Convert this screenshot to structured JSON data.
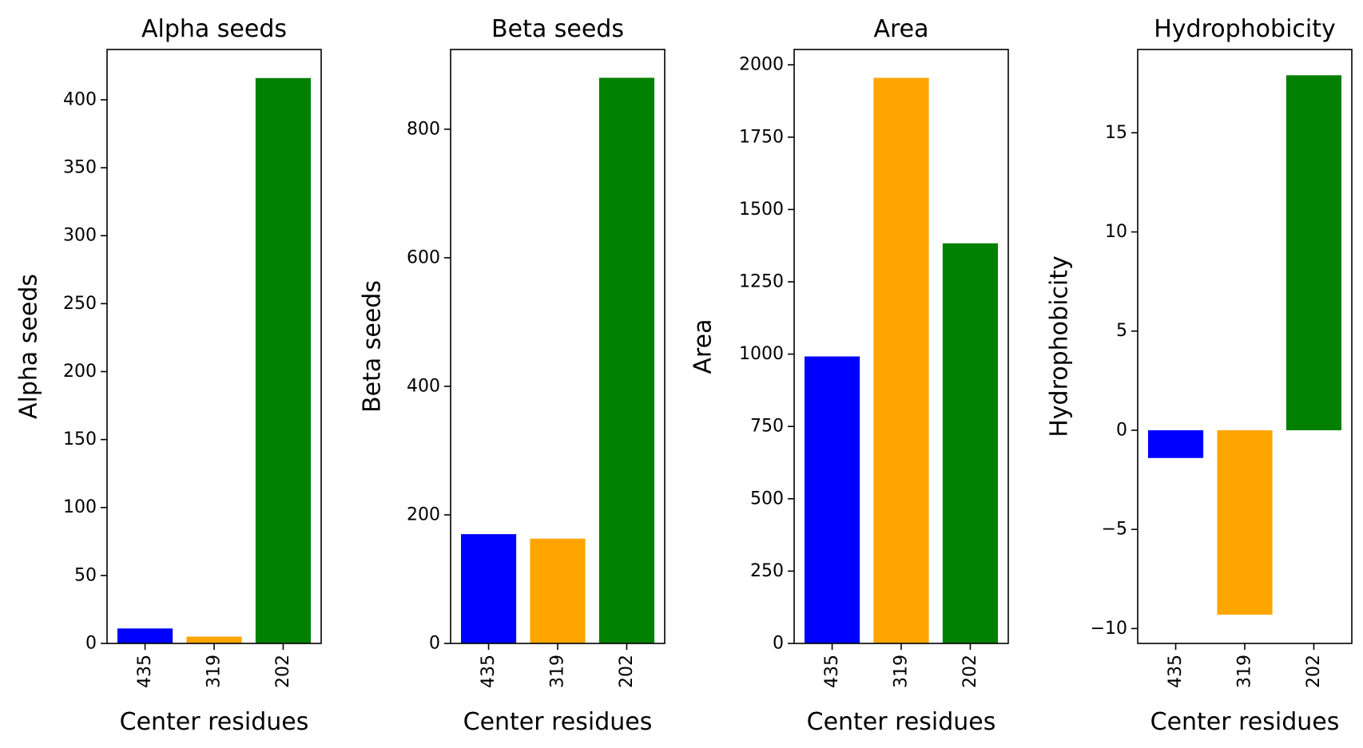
{
  "chart_data": [
    {
      "type": "bar",
      "title": "Alpha seeds",
      "xlabel": "Center residues",
      "ylabel": "Alpha seeds",
      "categories": [
        "435",
        "319",
        "202"
      ],
      "values": [
        11,
        5,
        416
      ],
      "colors": [
        "#0000ff",
        "#ffa500",
        "#008000"
      ],
      "ylim": [
        0,
        437
      ],
      "yticks": [
        0,
        50,
        100,
        150,
        200,
        250,
        300,
        350,
        400
      ],
      "ytick_labels": [
        "0",
        "50",
        "100",
        "150",
        "200",
        "250",
        "300",
        "350",
        "400"
      ],
      "grid": false,
      "legend": "none"
    },
    {
      "type": "bar",
      "title": "Beta seeds",
      "xlabel": "Center residues",
      "ylabel": "Beta seeds",
      "categories": [
        "435",
        "319",
        "202"
      ],
      "values": [
        170,
        163,
        880
      ],
      "colors": [
        "#0000ff",
        "#ffa500",
        "#008000"
      ],
      "ylim": [
        0,
        924
      ],
      "yticks": [
        0,
        200,
        400,
        600,
        800
      ],
      "ytick_labels": [
        "0",
        "200",
        "400",
        "600",
        "800"
      ],
      "grid": false,
      "legend": "none"
    },
    {
      "type": "bar",
      "title": "Area",
      "xlabel": "Center residues",
      "ylabel": "Area",
      "categories": [
        "435",
        "319",
        "202"
      ],
      "values": [
        992,
        1955,
        1383
      ],
      "colors": [
        "#0000ff",
        "#ffa500",
        "#008000"
      ],
      "ylim": [
        0,
        2053
      ],
      "yticks": [
        0,
        250,
        500,
        750,
        1000,
        1250,
        1500,
        1750,
        2000
      ],
      "ytick_labels": [
        "0",
        "250",
        "500",
        "750",
        "1000",
        "1250",
        "1500",
        "1750",
        "2000"
      ],
      "grid": false,
      "legend": "none"
    },
    {
      "type": "bar",
      "title": "Hydrophobicity",
      "xlabel": "Center residues",
      "ylabel": "Hydrophobicity",
      "categories": [
        "435",
        "319",
        "202"
      ],
      "values": [
        -1.4,
        -9.3,
        17.9
      ],
      "colors": [
        "#0000ff",
        "#ffa500",
        "#008000"
      ],
      "ylim": [
        -10.75,
        19.2
      ],
      "yticks": [
        -10,
        -5,
        0,
        5,
        10,
        15
      ],
      "ytick_labels": [
        "−10",
        "−5",
        "0",
        "5",
        "10",
        "15"
      ],
      "grid": false,
      "legend": "none"
    }
  ]
}
